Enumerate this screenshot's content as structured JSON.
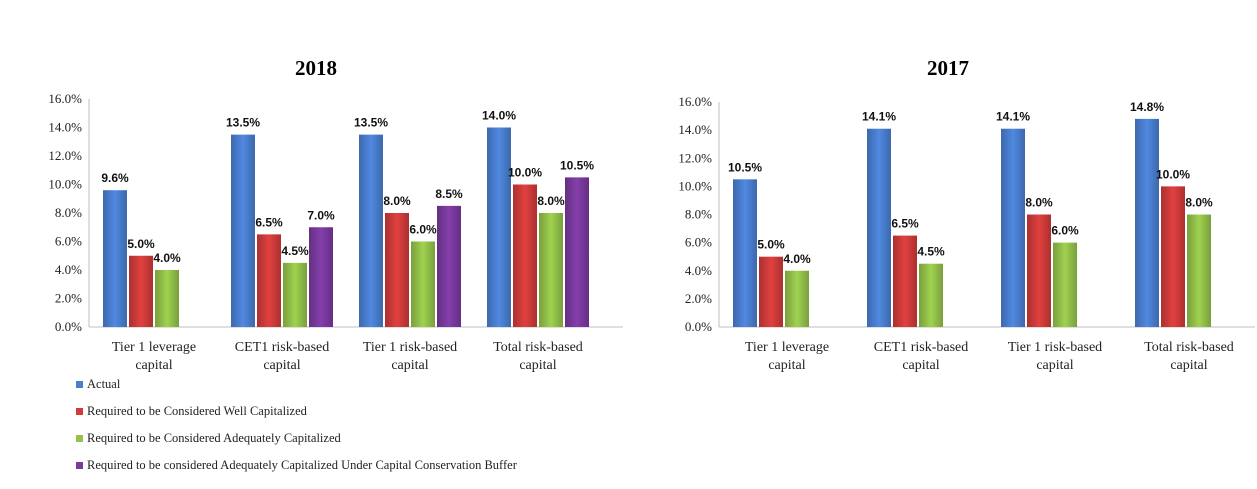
{
  "colors": {
    "Actual": "#4a7fd0",
    "Required to be Considered Well Capitalized": "#d03b3a",
    "Required to be Considered Adequately Capitalized": "#94c24a",
    "Required to be considered Adequately Capitalized Under Capital Conservation Buffer": "#7a3a9e"
  },
  "legend": [
    "Actual",
    "Required to be Considered Well Capitalized",
    "Required to be Considered Adequately Capitalized",
    "Required to be considered Adequately Capitalized Under Capital Conservation Buffer"
  ],
  "chart_data": [
    {
      "type": "bar",
      "title": "2018",
      "categories": [
        [
          "Tier 1 leverage",
          "capital"
        ],
        [
          "CET1 risk-based",
          "capital"
        ],
        [
          "Tier 1 risk-based",
          "capital"
        ],
        [
          "Total risk-based",
          "capital"
        ]
      ],
      "ylim": [
        0,
        16
      ],
      "yticks": [
        "0.0%",
        "2.0%",
        "4.0%",
        "6.0%",
        "8.0%",
        "10.0%",
        "12.0%",
        "14.0%",
        "16.0%"
      ],
      "legend_position": "bottom-left",
      "series": [
        {
          "name": "Actual",
          "values": [
            9.6,
            13.5,
            13.5,
            14.0
          ],
          "labels": [
            "9.6%",
            "13.5%",
            "13.5%",
            "14.0%"
          ]
        },
        {
          "name": "Required to be Considered Well Capitalized",
          "values": [
            5.0,
            6.5,
            8.0,
            10.0
          ],
          "labels": [
            "5.0%",
            "6.5%",
            "8.0%",
            "10.0%"
          ]
        },
        {
          "name": "Required to be Considered Adequately Capitalized",
          "values": [
            4.0,
            4.5,
            6.0,
            8.0
          ],
          "labels": [
            "4.0%",
            "4.5%",
            "6.0%",
            "8.0%"
          ]
        },
        {
          "name": "Required to be considered Adequately Capitalized Under Capital Conservation Buffer",
          "values": [
            null,
            7.0,
            8.5,
            10.5
          ],
          "labels": [
            "",
            "7.0%",
            "8.5%",
            "10.5%"
          ]
        }
      ]
    },
    {
      "type": "bar",
      "title": "2017",
      "categories": [
        [
          "Tier 1 leverage",
          "capital"
        ],
        [
          "CET1 risk-based",
          "capital"
        ],
        [
          "Tier 1 risk-based",
          "capital"
        ],
        [
          "Total risk-based",
          "capital"
        ]
      ],
      "ylim": [
        0,
        16
      ],
      "yticks": [
        "0.0%",
        "2.0%",
        "4.0%",
        "6.0%",
        "8.0%",
        "10.0%",
        "12.0%",
        "14.0%",
        "16.0%"
      ],
      "series": [
        {
          "name": "Actual",
          "values": [
            10.5,
            14.1,
            14.1,
            14.8
          ],
          "labels": [
            "10.5%",
            "14.1%",
            "14.1%",
            "14.8%"
          ]
        },
        {
          "name": "Required to be Considered Well Capitalized",
          "values": [
            5.0,
            6.5,
            8.0,
            10.0
          ],
          "labels": [
            "5.0%",
            "6.5%",
            "8.0%",
            "10.0%"
          ]
        },
        {
          "name": "Required to be Considered Adequately Capitalized",
          "values": [
            4.0,
            4.5,
            6.0,
            8.0
          ],
          "labels": [
            "4.0%",
            "4.5%",
            "6.0%",
            "8.0%"
          ]
        }
      ]
    }
  ]
}
